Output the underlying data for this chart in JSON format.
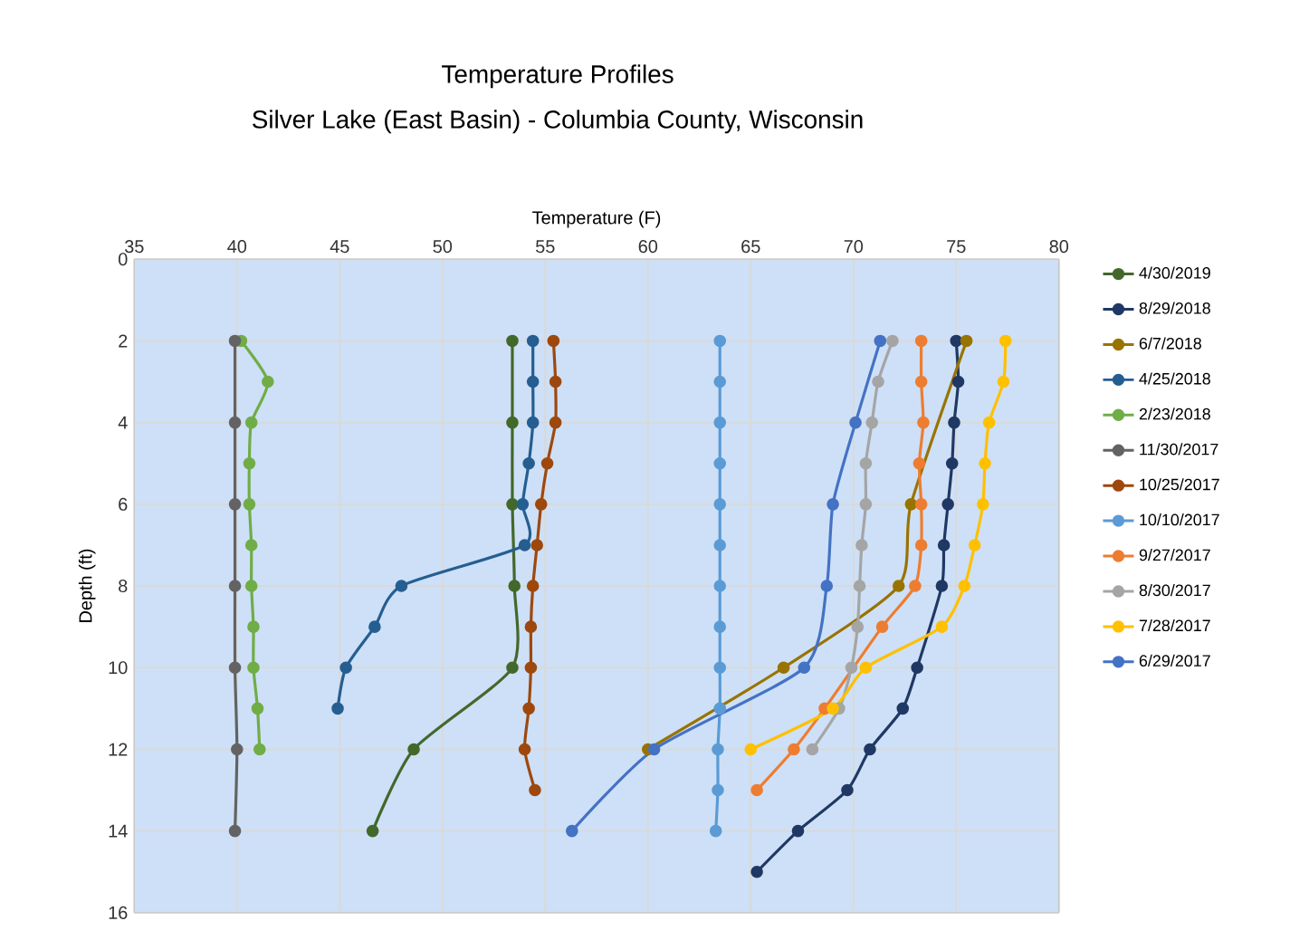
{
  "chart_data": {
    "type": "line",
    "title": "Temperature Profiles",
    "subtitle": "Silver Lake (East Basin) - Columbia County, Wisconsin",
    "xlabel": "Temperature (F)",
    "ylabel": "Depth (ft)",
    "xlim": [
      35,
      80
    ],
    "xticks": [
      35,
      40,
      45,
      50,
      55,
      60,
      65,
      70,
      75,
      80
    ],
    "ylim": [
      16,
      0
    ],
    "yticks": [
      0,
      2,
      4,
      6,
      8,
      10,
      12,
      14,
      16
    ],
    "grid": true,
    "legend": "right",
    "marker": "circle",
    "line_style": "solid",
    "series": [
      {
        "name": "4/30/2019",
        "color": "#43682b",
        "x": [
          53.4,
          53.4,
          53.4,
          53.5,
          53.4,
          48.6,
          46.6
        ],
        "values": [
          2,
          4,
          6,
          8,
          10,
          12,
          14
        ]
      },
      {
        "name": "8/29/2018",
        "color": "#203864",
        "x": [
          75.0,
          75.1,
          74.9,
          74.8,
          74.6,
          74.4,
          74.3,
          73.1,
          72.4,
          70.8,
          69.7,
          67.3,
          65.3
        ],
        "values": [
          2,
          3,
          4,
          5,
          6,
          7,
          8,
          10,
          11,
          12,
          13,
          14,
          15
        ]
      },
      {
        "name": "6/7/2018",
        "color": "#997300",
        "x": [
          75.5,
          72.8,
          72.2,
          66.6,
          60.0
        ],
        "values": [
          2,
          6,
          8,
          10,
          12
        ]
      },
      {
        "name": "4/25/2018",
        "color": "#255e91",
        "x": [
          54.4,
          54.4,
          54.4,
          54.2,
          53.9,
          54.0,
          48.0,
          46.7,
          45.3,
          44.9
        ],
        "values": [
          2,
          3,
          4,
          5,
          6,
          7,
          8,
          9,
          10,
          11
        ]
      },
      {
        "name": "2/23/2018",
        "color": "#70ad47",
        "x": [
          40.2,
          41.5,
          40.7,
          40.6,
          40.6,
          40.7,
          40.7,
          40.8,
          40.8,
          41.0,
          41.1
        ],
        "values": [
          2,
          3,
          4,
          5,
          6,
          7,
          8,
          9,
          10,
          11,
          12
        ]
      },
      {
        "name": "11/30/2017",
        "color": "#636363",
        "x": [
          39.9,
          39.9,
          39.9,
          39.9,
          39.9,
          40.0,
          39.9
        ],
        "values": [
          2,
          4,
          6,
          8,
          10,
          12,
          14
        ]
      },
      {
        "name": "10/25/2017",
        "color": "#9e480e",
        "x": [
          55.4,
          55.5,
          55.5,
          55.1,
          54.8,
          54.6,
          54.4,
          54.3,
          54.3,
          54.2,
          54.0,
          54.5
        ],
        "values": [
          2,
          3,
          4,
          5,
          6,
          7,
          8,
          9,
          10,
          11,
          12,
          13
        ]
      },
      {
        "name": "10/10/2017",
        "color": "#5b9bd5",
        "x": [
          63.5,
          63.5,
          63.5,
          63.5,
          63.5,
          63.5,
          63.5,
          63.5,
          63.5,
          63.5,
          63.4,
          63.4,
          63.3
        ],
        "values": [
          2,
          3,
          4,
          5,
          6,
          7,
          8,
          9,
          10,
          11,
          12,
          13,
          14
        ]
      },
      {
        "name": "9/27/2017",
        "color": "#ed7d31",
        "x": [
          73.3,
          73.3,
          73.4,
          73.2,
          73.3,
          73.3,
          73.0,
          71.4,
          68.6,
          67.1,
          65.3
        ],
        "values": [
          2,
          3,
          4,
          5,
          6,
          7,
          8,
          9,
          11,
          12,
          13
        ]
      },
      {
        "name": "8/30/2017",
        "color": "#a5a5a5",
        "x": [
          71.9,
          71.2,
          70.9,
          70.6,
          70.6,
          70.4,
          70.3,
          70.2,
          69.9,
          69.3,
          68.0
        ],
        "values": [
          2,
          3,
          4,
          5,
          6,
          7,
          8,
          9,
          10,
          11,
          12
        ]
      },
      {
        "name": "7/28/2017",
        "color": "#ffc000",
        "x": [
          77.4,
          77.3,
          76.6,
          76.4,
          76.3,
          75.9,
          75.4,
          74.3,
          70.6,
          69.0,
          65.0
        ],
        "values": [
          2,
          3,
          4,
          5,
          6,
          7,
          8,
          9,
          10,
          11,
          12
        ]
      },
      {
        "name": "6/29/2017",
        "color": "#4472c4",
        "x": [
          71.3,
          70.1,
          69.0,
          68.7,
          67.6,
          60.3,
          56.3
        ],
        "values": [
          2,
          4,
          6,
          8,
          10,
          12,
          14
        ]
      }
    ]
  }
}
